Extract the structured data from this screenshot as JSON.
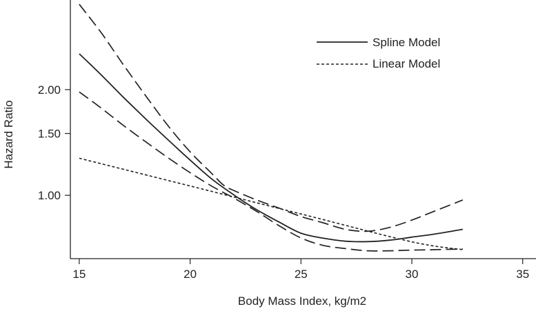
{
  "chart_data": {
    "type": "line",
    "title": "",
    "xlabel": "Body Mass Index, kg/m2",
    "ylabel": "Hazard Ratio",
    "x_ticks": [
      15,
      20,
      25,
      30,
      35
    ],
    "y_ticks": [
      {
        "value": 2.0,
        "label": "2.00"
      },
      {
        "value": 1.5,
        "label": "1.50"
      },
      {
        "value": 1.0,
        "label": "1.00"
      }
    ],
    "xlim": [
      14.6,
      35.6
    ],
    "y_scale": "log",
    "ylim": [
      0.66,
      3.6
    ],
    "grid": false,
    "legend_position": "top-right",
    "series": [
      {
        "name": "Spline Model",
        "style": "solid",
        "in_legend": true,
        "x": [
          15,
          16,
          17,
          18,
          19,
          20,
          21,
          22,
          23,
          24,
          25,
          26,
          27,
          28,
          29,
          30,
          31,
          32.3
        ],
        "y": [
          2.53,
          2.2,
          1.9,
          1.65,
          1.44,
          1.26,
          1.11,
          1.0,
          0.91,
          0.84,
          0.78,
          0.755,
          0.74,
          0.738,
          0.745,
          0.76,
          0.775,
          0.8
        ]
      },
      {
        "name": "95% CI upper",
        "style": "longdash",
        "in_legend": false,
        "x": [
          15,
          16,
          17,
          18,
          19,
          20,
          21,
          21.5,
          22,
          23,
          24,
          25,
          26,
          27,
          28,
          29,
          30,
          31,
          32.3
        ],
        "y": [
          3.5,
          2.9,
          2.35,
          1.92,
          1.58,
          1.33,
          1.15,
          1.07,
          1.03,
          0.97,
          0.92,
          0.87,
          0.835,
          0.8,
          0.79,
          0.81,
          0.85,
          0.9,
          0.97
        ]
      },
      {
        "name": "95% CI lower",
        "style": "longdash",
        "in_legend": false,
        "x": [
          15,
          16,
          17,
          18,
          19,
          20,
          21,
          22,
          23,
          24,
          25,
          26,
          27,
          28,
          29,
          30,
          31,
          32.3
        ],
        "y": [
          1.97,
          1.77,
          1.58,
          1.42,
          1.28,
          1.16,
          1.06,
          0.98,
          0.9,
          0.82,
          0.756,
          0.72,
          0.705,
          0.695,
          0.695,
          0.698,
          0.7,
          0.703
        ]
      },
      {
        "name": "Linear Model",
        "style": "shortdash",
        "in_legend": true,
        "x": [
          15,
          20,
          25,
          30,
          32.3
        ],
        "y": [
          1.275,
          1.063,
          0.885,
          0.737,
          0.7
        ]
      }
    ]
  }
}
